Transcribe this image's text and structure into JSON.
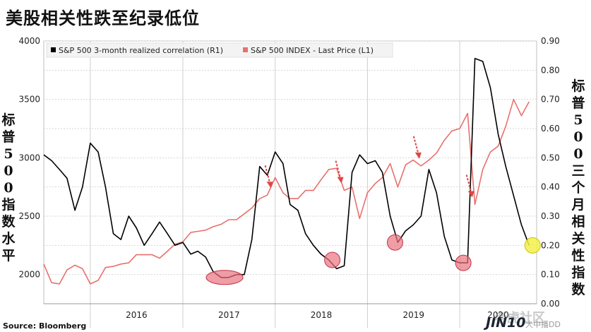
{
  "header": {
    "title": "美股相关性跌至纪录低位",
    "left_axis_title": "标普500指数水平",
    "right_axis_title": "标普500三个月相关性指数",
    "source": "Source: Bloomberg"
  },
  "watermark": {
    "community": "老虎社区",
    "brand": "JIN10",
    "suffix": "大中播DD"
  },
  "colors": {
    "correlation": "#000000",
    "spx": "#e8706c",
    "circle_pink": "#e9737f",
    "circle_yellow": "#f3f04a",
    "arrow": "#e04646",
    "grid": "#d6d6d6"
  },
  "chart_data": {
    "type": "line",
    "title": "",
    "x_axis": {
      "labels": [
        "2016",
        "2017",
        "2018",
        "2019",
        "2020"
      ],
      "range": [
        "2015-07-01",
        "2020-10-31"
      ]
    },
    "left_axis": {
      "range": [
        1750,
        4000
      ],
      "ticks": [
        2000,
        2500,
        3000,
        3500,
        4000
      ]
    },
    "right_axis": {
      "range": [
        0.0,
        0.9
      ],
      "ticks": [
        "0.00",
        "0.10",
        "0.20",
        "0.30",
        "0.40",
        "0.50",
        "0.60",
        "0.70",
        "0.80",
        "0.90"
      ]
    },
    "legend": {
      "placement": "top-left"
    },
    "grid": true,
    "series": [
      {
        "name": "S&P 500 3-month realized correlation (R1)",
        "axis": "right",
        "x": [
          "2015-07-01",
          "2015-08-01",
          "2015-09-01",
          "2015-10-01",
          "2015-11-01",
          "2015-12-01",
          "2016-01-01",
          "2016-02-01",
          "2016-03-01",
          "2016-04-01",
          "2016-05-01",
          "2016-06-01",
          "2016-07-01",
          "2016-08-01",
          "2016-09-01",
          "2016-10-01",
          "2016-11-01",
          "2016-12-01",
          "2017-01-01",
          "2017-02-01",
          "2017-03-01",
          "2017-04-01",
          "2017-05-01",
          "2017-06-01",
          "2017-07-01",
          "2017-08-01",
          "2017-09-01",
          "2017-10-01",
          "2017-11-01",
          "2017-12-01",
          "2018-01-01",
          "2018-02-01",
          "2018-03-01",
          "2018-04-01",
          "2018-05-01",
          "2018-06-01",
          "2018-07-01",
          "2018-08-01",
          "2018-09-01",
          "2018-10-01",
          "2018-11-01",
          "2018-12-01",
          "2019-01-01",
          "2019-02-01",
          "2019-03-01",
          "2019-04-01",
          "2019-05-01",
          "2019-06-01",
          "2019-07-01",
          "2019-08-01",
          "2019-09-01",
          "2019-10-01",
          "2019-11-01",
          "2019-12-01",
          "2020-01-01",
          "2020-02-01",
          "2020-03-01",
          "2020-04-01",
          "2020-05-01",
          "2020-06-01",
          "2020-07-01",
          "2020-08-01",
          "2020-09-01",
          "2020-10-01"
        ],
        "values": [
          0.51,
          0.49,
          0.46,
          0.43,
          0.32,
          0.4,
          0.55,
          0.52,
          0.4,
          0.24,
          0.22,
          0.3,
          0.26,
          0.2,
          0.24,
          0.28,
          0.24,
          0.2,
          0.21,
          0.17,
          0.18,
          0.16,
          0.11,
          0.09,
          0.09,
          0.1,
          0.1,
          0.22,
          0.47,
          0.44,
          0.52,
          0.48,
          0.34,
          0.32,
          0.24,
          0.2,
          0.17,
          0.15,
          0.12,
          0.13,
          0.45,
          0.51,
          0.48,
          0.49,
          0.45,
          0.3,
          0.21,
          0.25,
          0.27,
          0.3,
          0.46,
          0.38,
          0.23,
          0.15,
          0.14,
          0.14,
          0.84,
          0.83,
          0.74,
          0.58,
          0.47,
          0.37,
          0.27,
          0.2
        ]
      },
      {
        "name": "S&P 500 INDEX - Last Price (L1)",
        "axis": "left",
        "x": [
          "2015-07-01",
          "2015-08-01",
          "2015-09-01",
          "2015-10-01",
          "2015-11-01",
          "2015-12-01",
          "2016-01-01",
          "2016-02-01",
          "2016-03-01",
          "2016-04-01",
          "2016-05-01",
          "2016-06-01",
          "2016-07-01",
          "2016-08-01",
          "2016-09-01",
          "2016-10-01",
          "2016-11-01",
          "2016-12-01",
          "2017-01-01",
          "2017-02-01",
          "2017-03-01",
          "2017-04-01",
          "2017-05-01",
          "2017-06-01",
          "2017-07-01",
          "2017-08-01",
          "2017-09-01",
          "2017-10-01",
          "2017-11-01",
          "2017-12-01",
          "2018-01-01",
          "2018-02-01",
          "2018-03-01",
          "2018-04-01",
          "2018-05-01",
          "2018-06-01",
          "2018-07-01",
          "2018-08-01",
          "2018-09-01",
          "2018-10-01",
          "2018-11-01",
          "2018-12-01",
          "2019-01-01",
          "2019-02-01",
          "2019-03-01",
          "2019-04-01",
          "2019-05-01",
          "2019-06-01",
          "2019-07-01",
          "2019-08-01",
          "2019-09-01",
          "2019-10-01",
          "2019-11-01",
          "2019-12-01",
          "2020-01-01",
          "2020-02-01",
          "2020-03-01",
          "2020-04-01",
          "2020-05-01",
          "2020-06-01",
          "2020-07-01",
          "2020-08-01",
          "2020-09-01",
          "2020-10-01"
        ],
        "values": [
          2090,
          1930,
          1920,
          2040,
          2080,
          2050,
          1920,
          1950,
          2060,
          2070,
          2090,
          2100,
          2170,
          2170,
          2170,
          2140,
          2200,
          2260,
          2280,
          2360,
          2370,
          2380,
          2410,
          2430,
          2470,
          2470,
          2520,
          2570,
          2650,
          2680,
          2830,
          2700,
          2650,
          2650,
          2720,
          2720,
          2810,
          2900,
          2910,
          2720,
          2750,
          2480,
          2700,
          2780,
          2830,
          2950,
          2750,
          2940,
          2980,
          2930,
          2980,
          3040,
          3150,
          3230,
          3250,
          3380,
          2600,
          2900,
          3050,
          3100,
          3270,
          3500,
          3360,
          3480
        ]
      }
    ],
    "annotations": [
      {
        "type": "arrow",
        "label": "",
        "x": "2017-12-15"
      },
      {
        "type": "arrow",
        "label": "",
        "x": "2018-09-20"
      },
      {
        "type": "arrow",
        "label": "",
        "x": "2019-07-25"
      },
      {
        "type": "arrow",
        "label": "",
        "x": "2020-02-19"
      },
      {
        "type": "circle",
        "label": "",
        "x": "2017-06-15"
      },
      {
        "type": "circle",
        "label": "",
        "x": "2018-08-15"
      },
      {
        "type": "circle",
        "label": "",
        "x": "2019-04-20"
      },
      {
        "type": "circle",
        "label": "",
        "x": "2020-01-15"
      },
      {
        "type": "circle",
        "label": "",
        "x": "2020-10-15"
      }
    ]
  }
}
